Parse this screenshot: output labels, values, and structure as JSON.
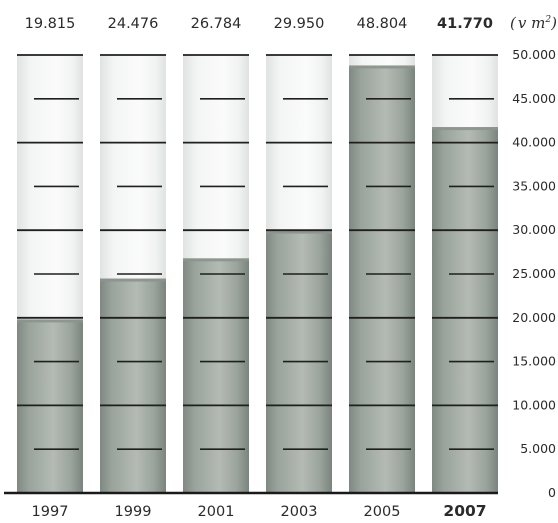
{
  "chart_data": {
    "type": "bar",
    "categories": [
      "1997",
      "1999",
      "2001",
      "2003",
      "2005",
      "2007"
    ],
    "value_labels": [
      "19.815",
      "24.476",
      "26.784",
      "29.950",
      "48.804",
      "41.770"
    ],
    "values": [
      19815,
      24476,
      26784,
      29950,
      48804,
      41770
    ],
    "highlight_index": 5,
    "unit_open": "(",
    "unit_text": "v m",
    "unit_sup": "2",
    "unit_close": ")",
    "yticks": [
      {
        "value": 50000,
        "label": "50.000"
      },
      {
        "value": 45000,
        "label": "45.000"
      },
      {
        "value": 40000,
        "label": "40.000"
      },
      {
        "value": 35000,
        "label": "35.000"
      },
      {
        "value": 30000,
        "label": "30.000"
      },
      {
        "value": 25000,
        "label": "25.000"
      },
      {
        "value": 20000,
        "label": "20.000"
      },
      {
        "value": 15000,
        "label": "15.000"
      },
      {
        "value": 10000,
        "label": "10.000"
      },
      {
        "value": 5000,
        "label": "5.000"
      },
      {
        "value": 0,
        "label": "0"
      }
    ],
    "ylim": [
      0,
      50000
    ],
    "colors": {
      "fill": "#9aa39c",
      "fill_dark": "#7f8982",
      "fill_light": "#b3bab3",
      "empty": "#f4f5f5",
      "empty_edge": "#e2e4e3",
      "tick": "#1f1f1f"
    }
  }
}
